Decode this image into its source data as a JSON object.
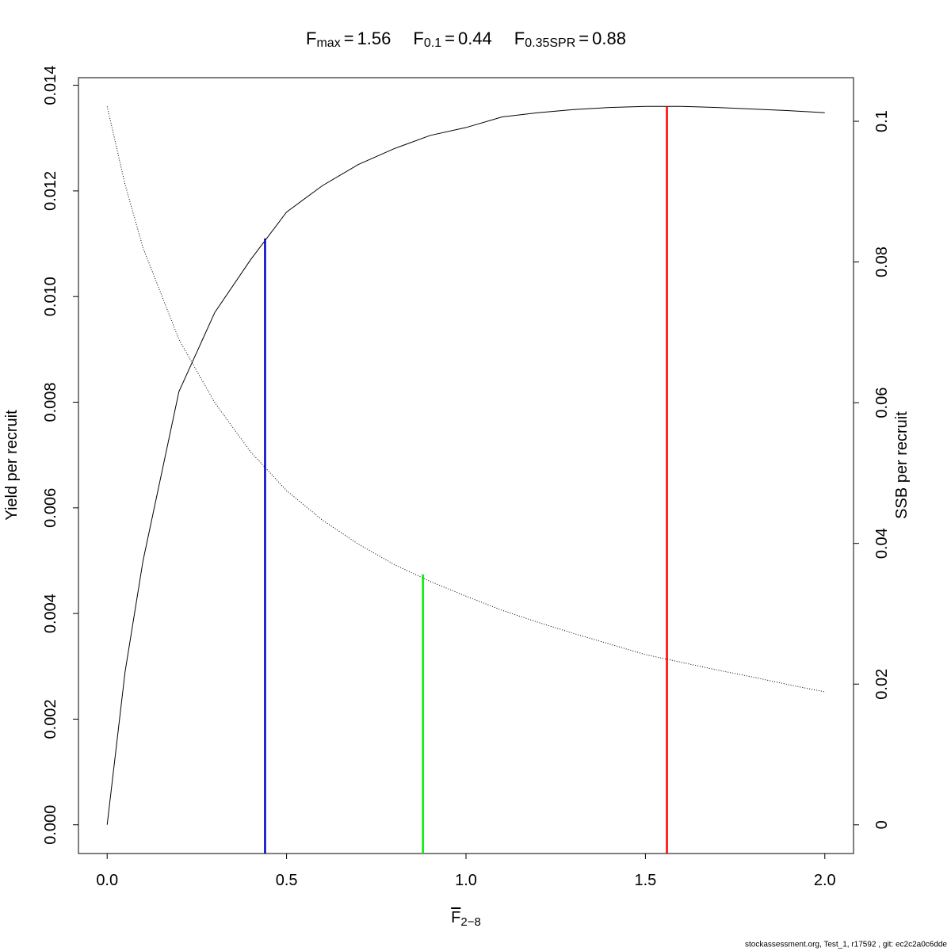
{
  "chart_data": {
    "type": "line",
    "title_separator": "=",
    "reference_points": [
      {
        "symbol": "F",
        "subscript": "max",
        "x": 1.56,
        "y": 0.0136,
        "axis": "y",
        "color": "#ff0000"
      },
      {
        "symbol": "F",
        "subscript": "0.1",
        "x": 0.44,
        "y": 0.0111,
        "axis": "y",
        "color": "#0000cc"
      },
      {
        "symbol": "F",
        "subscript": "0.35SPR",
        "x": 0.88,
        "y": 0.0356,
        "axis": "y2",
        "color": "#00ee00"
      }
    ],
    "xlabel": {
      "symbol": "F",
      "subscript": "2−8"
    },
    "ylabel": "Yield per recruit",
    "y2label": "SSB per recruit",
    "footer": "stockassessment.org, Test_1, r17592 , git: ec2c2a0c6dde",
    "x": [
      0,
      0.05,
      0.1,
      0.2,
      0.3,
      0.4,
      0.5,
      0.6,
      0.7,
      0.8,
      0.9,
      1.0,
      1.1,
      1.2,
      1.3,
      1.4,
      1.5,
      1.6,
      1.7,
      1.8,
      1.9,
      2.0
    ],
    "series": [
      {
        "name": "Yield per recruit",
        "axis": "y",
        "color": "#000000",
        "style": "solid",
        "values": [
          0,
          0.0029,
          0.005,
          0.0082,
          0.0097,
          0.0107,
          0.0116,
          0.0121,
          0.0125,
          0.0128,
          0.01305,
          0.0132,
          0.0134,
          0.01348,
          0.01354,
          0.01358,
          0.0136,
          0.0136,
          0.01358,
          0.01355,
          0.01352,
          0.01348
        ]
      },
      {
        "name": "SSB per recruit",
        "axis": "y2",
        "color": "#000000",
        "style": "dotted",
        "values": [
          0.1021,
          0.091,
          0.082,
          0.069,
          0.06,
          0.053,
          0.0475,
          0.0433,
          0.0399,
          0.037,
          0.0346,
          0.0325,
          0.0305,
          0.0288,
          0.0272,
          0.0257,
          0.0242,
          0.0231,
          0.022,
          0.021,
          0.0199,
          0.0189
        ]
      }
    ],
    "xlim": [
      -0.08,
      2.08
    ],
    "xticks": [
      {
        "value": 0,
        "label": "0.0"
      },
      0.5,
      {
        "value": 1,
        "label": "1.0"
      },
      1.5,
      {
        "value": 2,
        "label": "2.0"
      }
    ],
    "ylim": [
      -0.000544,
      0.014144
    ],
    "yticks": [
      {
        "value": 0,
        "label": "0.000"
      },
      {
        "value": 0.002,
        "label": "0.002"
      },
      {
        "value": 0.004,
        "label": "0.004"
      },
      {
        "value": 0.006,
        "label": "0.006"
      },
      {
        "value": 0.008,
        "label": "0.008"
      },
      {
        "value": 0.01,
        "label": "0.010"
      },
      {
        "value": 0.012,
        "label": "0.012"
      },
      {
        "value": 0.014,
        "label": "0.014"
      }
    ],
    "y2lim": [
      -0.00408,
      0.1062
    ],
    "y2ticks": [
      0,
      0.02,
      0.04,
      0.06,
      0.08,
      0.1
    ]
  }
}
